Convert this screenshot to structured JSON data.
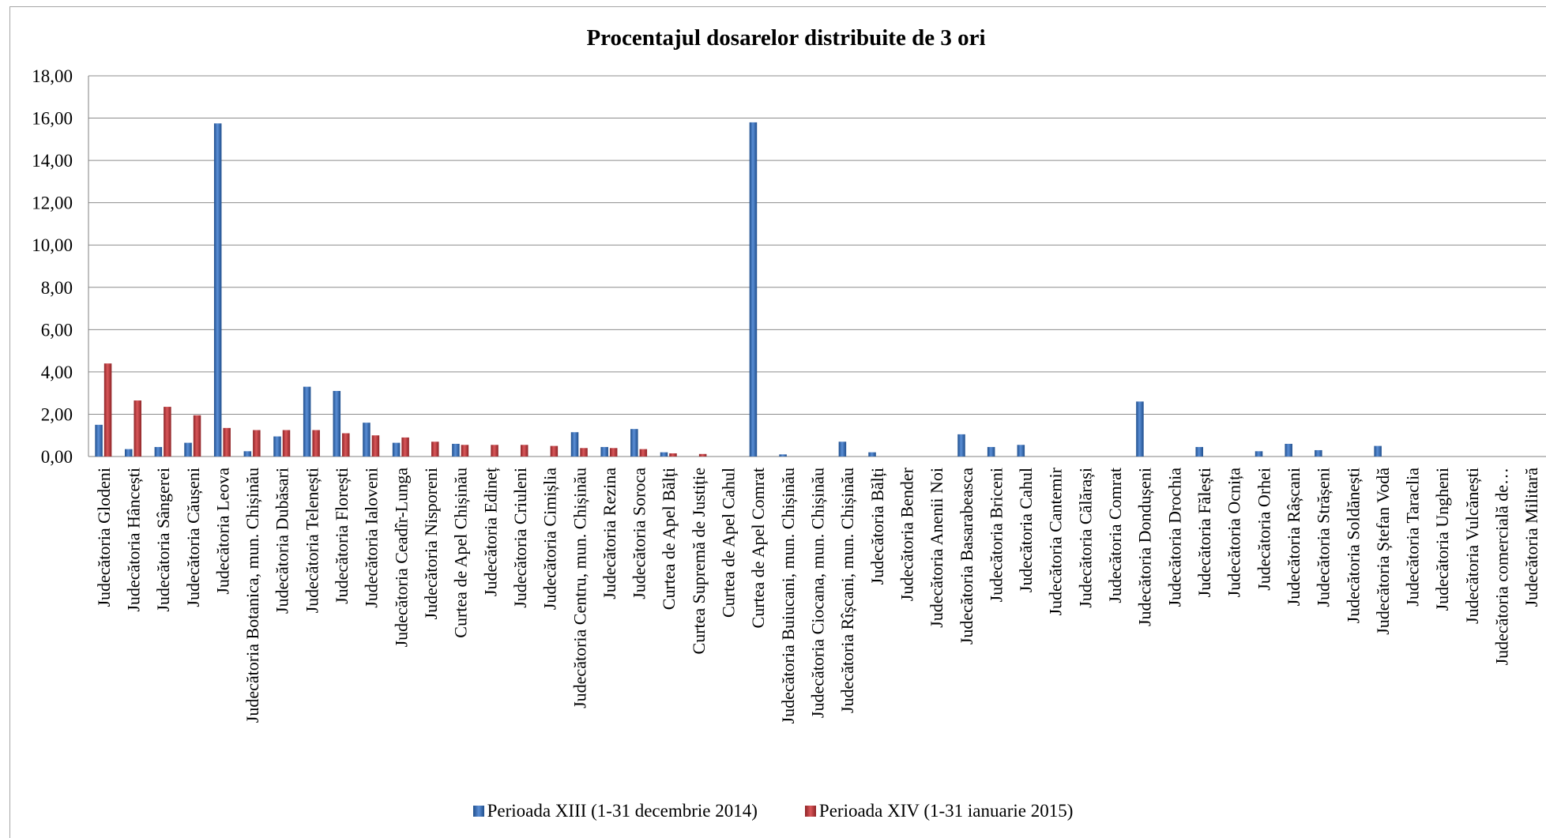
{
  "chart_data": {
    "type": "bar",
    "title": "Procentajul dosarelor distribuite de 3 ori",
    "ylim": [
      0,
      18
    ],
    "yticks": [
      "0,00",
      "2,00",
      "4,00",
      "6,00",
      "8,00",
      "10,00",
      "12,00",
      "14,00",
      "16,00",
      "18,00"
    ],
    "grid": true,
    "legend_position": "bottom",
    "categories": [
      "Judecătoria Glodeni",
      "Judecătoria Hâncești",
      "Judecătoria Sângerei",
      "Judecătoria Căușeni",
      "Judecătoria Leova",
      "Judecătoria Botanica, mun. Chișinău",
      "Judecătoria Dubăsari",
      "Judecătoria Telenești",
      "Judecătoria Florești",
      "Judecătoria Ialoveni",
      "Judecătoria Ceadîr-Lunga",
      "Judecătoria Nisporeni",
      "Curtea de Apel Chișinău",
      "Judecătoria Edineț",
      "Judecătoria Criuleni",
      "Judecătoria Cimișlia",
      "Judecătoria Centru, mun. Chișinău",
      "Judecătoria Rezina",
      "Judecătoria Soroca",
      "Curtea de Apel Bălți",
      "Curtea Supremă de Justiție",
      "Curtea de Apel Cahul",
      "Curtea de Apel Comrat",
      "Judecătoria Buiucani, mun. Chișinău",
      "Judecătoria Ciocana, mun. Chișinău",
      "Judecătoria Rîșcani, mun. Chișinău",
      "Judecătoria Bălți",
      "Judecătoria Bender",
      "Judecătoria Anenii Noi",
      "Judecătoria Basarabeasca",
      "Judecătoria Briceni",
      "Judecătoria Cahul",
      "Judecătoria Cantemir",
      "Judecătoria Călărași",
      "Judecătoria Comrat",
      "Judecătoria Dondușeni",
      "Judecătoria Drochia",
      "Judecătoria Fălești",
      "Judecătoria Ocnița",
      "Judecătoria Orhei",
      "Judecătoria Râșcani",
      "Judecătoria Strășeni",
      "Judecătoria Soldănești",
      "Judecătoria Ștefan Vodă",
      "Judecătoria Taraclia",
      "Judecătoria Ungheni",
      "Judecătoria Vulcănești",
      "Judecătoria comercială de…",
      "Judecătoria Militară"
    ],
    "series": [
      {
        "name": "Perioada XIII (1-31 decembrie 2014)",
        "color": "#3a6fb8",
        "values": [
          1.5,
          0.35,
          0.45,
          0.65,
          15.75,
          0.25,
          0.95,
          3.3,
          3.1,
          1.6,
          0.65,
          0,
          0.6,
          0,
          0,
          0,
          1.15,
          0.45,
          1.3,
          0.2,
          0,
          0,
          15.8,
          0.1,
          0,
          0.7,
          0.2,
          0,
          0,
          1.05,
          0.45,
          0.55,
          0,
          0,
          0,
          2.6,
          0,
          0.45,
          0,
          0.25,
          0.6,
          0.3,
          0,
          0.5,
          0,
          0,
          0,
          0,
          0
        ]
      },
      {
        "name": "Perioada XIV (1-31 ianuarie 2015)",
        "color": "#c0393b",
        "values": [
          4.4,
          2.65,
          2.35,
          1.95,
          1.35,
          1.25,
          1.25,
          1.25,
          1.1,
          1.0,
          0.9,
          0.7,
          0.55,
          0.55,
          0.55,
          0.5,
          0.4,
          0.4,
          0.35,
          0.15,
          0.12,
          0,
          0,
          0,
          0,
          0,
          0,
          0,
          0,
          0,
          0,
          0,
          0,
          0,
          0,
          0,
          0,
          0,
          0,
          0,
          0,
          0,
          0,
          0,
          0,
          0,
          0,
          0,
          0
        ]
      }
    ]
  }
}
